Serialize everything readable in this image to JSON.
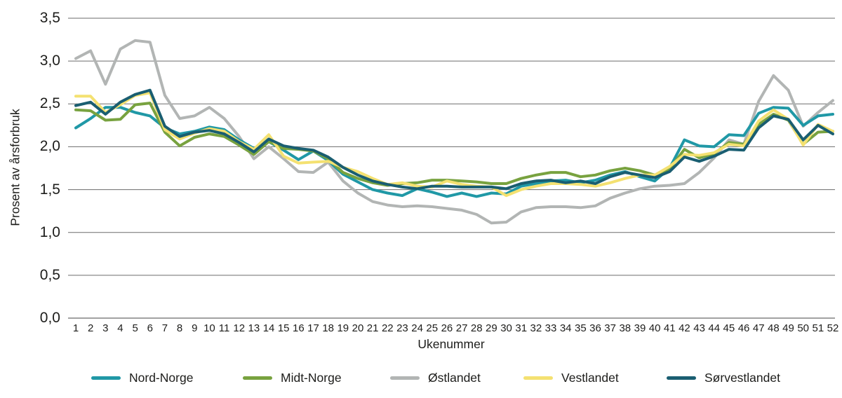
{
  "figure": {
    "background": "#ffffff",
    "text_color": "#1d1d1b"
  },
  "chart_data": {
    "type": "line",
    "title": "",
    "xlabel": "Ukenummer",
    "ylabel": "Prosent av årsforbruk",
    "ylim": [
      0.0,
      3.5
    ],
    "grid": "horizontal",
    "legend_position": "bottom",
    "y_ticks": [
      {
        "label": "3,5",
        "value": 3.5
      },
      {
        "label": "3,0",
        "value": 3.0
      },
      {
        "label": "2,5",
        "value": 2.5
      },
      {
        "label": "2,0",
        "value": 2.0
      },
      {
        "label": "1,5",
        "value": 1.5
      },
      {
        "label": "1,0",
        "value": 1.0
      },
      {
        "label": "0,5",
        "value": 0.5
      },
      {
        "label": "0,0",
        "value": 0.0
      }
    ],
    "x_weeks": [
      1,
      2,
      3,
      4,
      5,
      6,
      7,
      8,
      9,
      10,
      11,
      12,
      13,
      14,
      15,
      16,
      17,
      18,
      19,
      20,
      21,
      22,
      23,
      24,
      25,
      26,
      27,
      28,
      29,
      30,
      31,
      32,
      33,
      34,
      35,
      36,
      37,
      38,
      39,
      40,
      41,
      42,
      43,
      44,
      45,
      46,
      47,
      48,
      49,
      50,
      51,
      52
    ],
    "series": [
      {
        "name": "Nord-Norge",
        "color": "#2098a6",
        "values": [
          2.22,
          2.33,
          2.46,
          2.46,
          2.4,
          2.36,
          2.22,
          2.15,
          2.18,
          2.23,
          2.2,
          2.08,
          1.98,
          2.06,
          1.96,
          1.85,
          1.95,
          1.84,
          1.68,
          1.59,
          1.5,
          1.46,
          1.43,
          1.51,
          1.47,
          1.42,
          1.46,
          1.42,
          1.46,
          1.45,
          1.54,
          1.57,
          1.6,
          1.61,
          1.58,
          1.61,
          1.67,
          1.71,
          1.65,
          1.6,
          1.75,
          2.08,
          2.01,
          2.0,
          2.14,
          2.13,
          2.39,
          2.46,
          2.45,
          2.25,
          2.36,
          2.38
        ]
      },
      {
        "name": "Midt-Norge",
        "color": "#78a23f",
        "values": [
          2.43,
          2.42,
          2.31,
          2.32,
          2.49,
          2.51,
          2.17,
          2.01,
          2.11,
          2.15,
          2.12,
          2.02,
          1.91,
          2.06,
          1.98,
          1.97,
          1.95,
          1.86,
          1.7,
          1.63,
          1.58,
          1.55,
          1.57,
          1.58,
          1.61,
          1.61,
          1.6,
          1.59,
          1.57,
          1.57,
          1.63,
          1.67,
          1.7,
          1.7,
          1.65,
          1.67,
          1.72,
          1.75,
          1.72,
          1.67,
          1.74,
          1.97,
          1.87,
          1.92,
          2.05,
          2.03,
          2.26,
          2.38,
          2.31,
          2.03,
          2.17,
          2.18
        ]
      },
      {
        "name": "Østlandet",
        "color": "#b2b5b4",
        "values": [
          3.03,
          3.12,
          2.73,
          3.14,
          3.24,
          3.22,
          2.6,
          2.33,
          2.36,
          2.46,
          2.33,
          2.12,
          1.86,
          2.0,
          1.86,
          1.71,
          1.7,
          1.82,
          1.6,
          1.46,
          1.36,
          1.32,
          1.3,
          1.31,
          1.3,
          1.28,
          1.26,
          1.21,
          1.11,
          1.12,
          1.24,
          1.29,
          1.3,
          1.3,
          1.29,
          1.31,
          1.4,
          1.46,
          1.51,
          1.54,
          1.55,
          1.57,
          1.7,
          1.87,
          2.08,
          2.03,
          2.53,
          2.83,
          2.66,
          2.24,
          2.4,
          2.54
        ]
      },
      {
        "name": "Vestlandet",
        "color": "#f4e171",
        "values": [
          2.59,
          2.59,
          2.4,
          2.49,
          2.6,
          2.63,
          2.2,
          2.09,
          2.16,
          2.21,
          2.18,
          2.06,
          1.97,
          2.14,
          1.89,
          1.81,
          1.82,
          1.83,
          1.76,
          1.71,
          1.63,
          1.56,
          1.58,
          1.54,
          1.53,
          1.6,
          1.56,
          1.54,
          1.53,
          1.43,
          1.5,
          1.54,
          1.57,
          1.57,
          1.56,
          1.54,
          1.58,
          1.63,
          1.67,
          1.67,
          1.77,
          1.91,
          1.9,
          1.93,
          2.03,
          2.01,
          2.3,
          2.43,
          2.32,
          2.02,
          2.26,
          2.18
        ]
      },
      {
        "name": "Sørvestlandet",
        "color": "#1a5e71",
        "values": [
          2.48,
          2.52,
          2.38,
          2.52,
          2.61,
          2.66,
          2.24,
          2.12,
          2.17,
          2.19,
          2.15,
          2.05,
          1.94,
          2.09,
          2.01,
          1.98,
          1.96,
          1.88,
          1.76,
          1.67,
          1.6,
          1.56,
          1.53,
          1.51,
          1.54,
          1.54,
          1.53,
          1.53,
          1.53,
          1.51,
          1.57,
          1.6,
          1.61,
          1.58,
          1.6,
          1.57,
          1.65,
          1.7,
          1.67,
          1.64,
          1.71,
          1.88,
          1.83,
          1.89,
          1.97,
          1.96,
          2.22,
          2.36,
          2.32,
          2.08,
          2.25,
          2.15
        ]
      }
    ]
  }
}
